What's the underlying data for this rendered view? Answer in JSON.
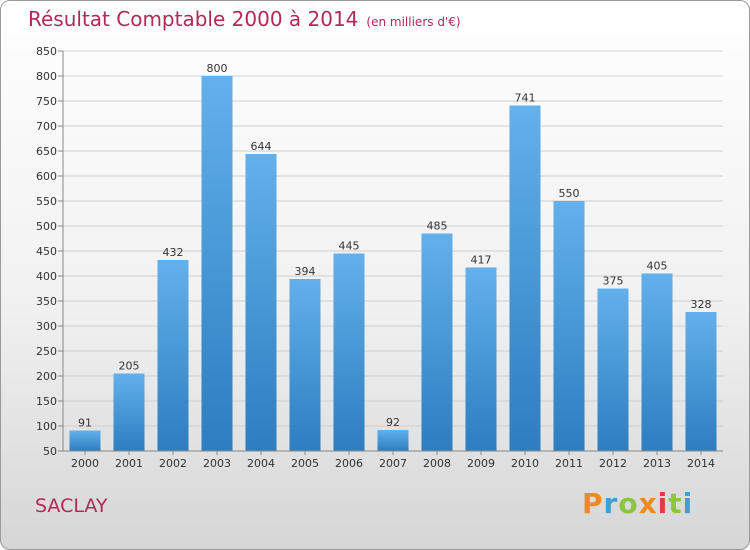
{
  "header": {
    "title": "Résultat Comptable 2000 à 2014",
    "unit": "(en milliers d'€)"
  },
  "footer": {
    "city": "SACLAY",
    "logo": "Proxiti",
    "logo_colors": [
      "#f08a1c",
      "#3aa0d8",
      "#8cc63f",
      "#f08a1c",
      "#e63946",
      "#8cc63f",
      "#3aa0d8"
    ]
  },
  "colors": {
    "bar_top": "#62b1ec",
    "bar_bottom": "#2d7dc0",
    "accent": "#b02a55"
  },
  "chart_data": {
    "type": "bar",
    "title": "Résultat Comptable 2000 à 2014",
    "subtitle": "(en milliers d'€)",
    "xlabel": "",
    "ylabel": "",
    "categories": [
      "2000",
      "2001",
      "2002",
      "2003",
      "2004",
      "2005",
      "2006",
      "2007",
      "2008",
      "2009",
      "2010",
      "2011",
      "2012",
      "2013",
      "2014"
    ],
    "values": [
      91,
      205,
      432,
      800,
      644,
      394,
      445,
      92,
      485,
      417,
      741,
      550,
      375,
      405,
      328
    ],
    "ylim": [
      50,
      850
    ],
    "yticks": [
      50,
      100,
      150,
      200,
      250,
      300,
      350,
      400,
      450,
      500,
      550,
      600,
      650,
      700,
      750,
      800,
      850
    ],
    "grid": true,
    "data_labels": true
  }
}
